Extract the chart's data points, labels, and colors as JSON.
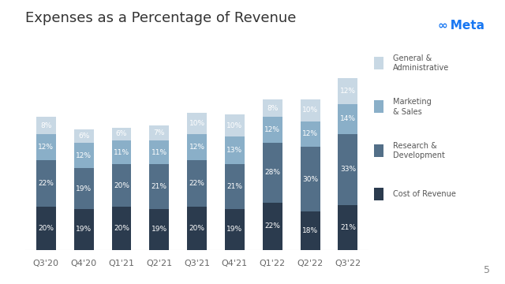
{
  "title": "Expenses as a Percentage of Revenue",
  "categories": [
    "Q3'20",
    "Q4'20",
    "Q1'21",
    "Q2'21",
    "Q3'21",
    "Q4'21",
    "Q1'22",
    "Q2'22",
    "Q3'22"
  ],
  "segments": {
    "Cost of Revenue": [
      20,
      19,
      20,
      19,
      20,
      19,
      22,
      18,
      21
    ],
    "Research & Development": [
      22,
      19,
      20,
      21,
      22,
      21,
      28,
      30,
      33
    ],
    "Marketing & Sales": [
      12,
      12,
      11,
      11,
      12,
      13,
      12,
      12,
      14
    ],
    "General & Administrative": [
      8,
      6,
      6,
      7,
      10,
      10,
      8,
      10,
      12
    ]
  },
  "segments_order": [
    "Cost of Revenue",
    "Research & Development",
    "Marketing & Sales",
    "General & Administrative"
  ],
  "colors": {
    "Cost of Revenue": "#2b3b4e",
    "Research & Development": "#536f88",
    "Marketing & Sales": "#8aafc8",
    "General & Administrative": "#c8d8e4"
  },
  "legend_order": [
    "General & Administrative",
    "Marketing & Sales",
    "Research & Development",
    "Cost of Revenue"
  ],
  "background_color": "#ffffff",
  "label_text_color": "#ffffff",
  "label_fontsize": 6.5,
  "title_fontsize": 13,
  "xtick_fontsize": 8,
  "legend_fontsize": 7,
  "bar_width": 0.52,
  "ylim": [
    0,
    90
  ],
  "meta_text": "Meta",
  "meta_color": "#1877f2",
  "page_number": "5"
}
